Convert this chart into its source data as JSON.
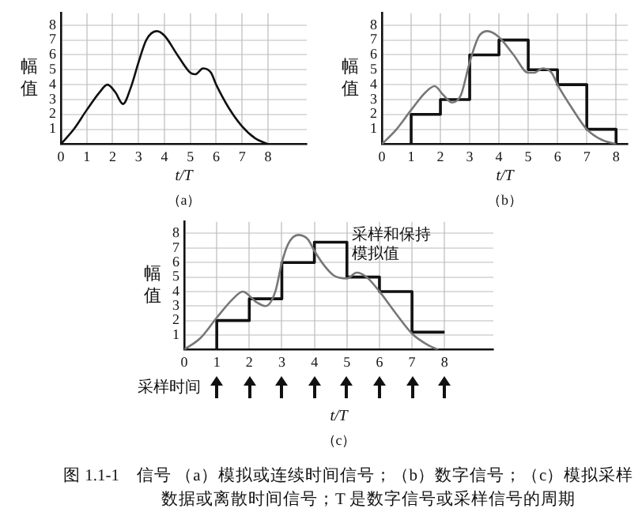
{
  "chart_data": [
    {
      "type": "line",
      "subtitle": "（a）",
      "xlabel": "t/T",
      "ylabel": "幅值",
      "xlim": [
        0,
        9.5
      ],
      "ylim": [
        0,
        8.8
      ],
      "xticks": [
        0,
        1,
        2,
        3,
        4,
        5,
        6,
        7,
        8
      ],
      "yticks": [
        1,
        2,
        3,
        4,
        5,
        6,
        7,
        8
      ],
      "grid": true,
      "legend": false,
      "series": [
        {
          "color": "#111111",
          "x": [
            0,
            0.5,
            1,
            1.5,
            1.8,
            2.1,
            2.4,
            2.7,
            3,
            3.3,
            3.7,
            4,
            4.5,
            5,
            5.2,
            5.5,
            5.8,
            6,
            6.5,
            7,
            7.5,
            8
          ],
          "values": [
            0,
            1,
            2.3,
            3.5,
            4,
            3.5,
            2.7,
            3.8,
            5.5,
            7,
            7.6,
            7.3,
            6,
            4.8,
            4.7,
            5.1,
            4.8,
            4,
            2.4,
            1.2,
            0.4,
            0
          ]
        }
      ]
    },
    {
      "type": "line",
      "subtitle": "（b）",
      "xlabel": "t/T",
      "ylabel": "幅值",
      "xlim": [
        0,
        8.4
      ],
      "ylim": [
        0,
        8.8
      ],
      "xticks": [
        0,
        1,
        2,
        3,
        4,
        5,
        6,
        7,
        8
      ],
      "yticks": [
        1,
        2,
        3,
        4,
        5,
        6,
        7,
        8
      ],
      "grid": true,
      "legend": false,
      "series": [
        {
          "color": "#777777",
          "x": [
            0,
            0.5,
            1,
            1.5,
            1.8,
            2.1,
            2.4,
            2.7,
            3,
            3.3,
            3.6,
            4,
            4.5,
            5,
            5.2,
            5.5,
            5.8,
            6,
            6.5,
            7,
            7.5,
            8
          ],
          "values": [
            0,
            1,
            2.3,
            3.5,
            3.9,
            3.3,
            2.8,
            3.3,
            5.5,
            7.2,
            7.6,
            7.2,
            6,
            4.8,
            4.8,
            5.1,
            4.8,
            4,
            2.4,
            1,
            0.3,
            0
          ]
        },
        {
          "type": "step",
          "color": "#111111",
          "x": [
            1,
            1,
            2,
            3,
            4,
            5,
            6,
            7,
            8
          ],
          "values": [
            0,
            2,
            3,
            6,
            7,
            5,
            4,
            1,
            0
          ]
        }
      ]
    },
    {
      "type": "line",
      "subtitle": "（c）",
      "xlabel": "t/T",
      "ylabel": "幅值",
      "xlim": [
        0,
        9.5
      ],
      "ylim": [
        0,
        8.8
      ],
      "xticks": [
        0,
        1,
        2,
        3,
        4,
        5,
        6,
        7,
        8
      ],
      "yticks": [
        1,
        2,
        3,
        4,
        5,
        6,
        7,
        8
      ],
      "grid": true,
      "legend": false,
      "annotations": [
        "采样和保持模拟值",
        "采样时间",
        "图 1.1-1　信号 （a）模拟或连续时间信号；（b）数字信号；（c）模拟采样数据或离散时间信号；T 是数字信号或采样信号的周期"
      ],
      "series": [
        {
          "color": "#777777",
          "x": [
            0,
            0.5,
            1,
            1.5,
            1.8,
            2.2,
            2.5,
            2.8,
            3,
            3.2,
            3.5,
            3.8,
            4,
            4.3,
            4.6,
            5,
            5.3,
            5.6,
            6,
            6.5,
            7,
            7.5,
            7.8
          ],
          "values": [
            0,
            0.8,
            2.2,
            3.5,
            4,
            3.3,
            3,
            4,
            6,
            7.3,
            7.9,
            7.6,
            6.8,
            5.8,
            5.1,
            4.9,
            5.3,
            5,
            4,
            2.5,
            1.1,
            0.3,
            0
          ]
        },
        {
          "type": "step",
          "color": "#111111",
          "x": [
            1,
            1,
            2,
            3,
            4,
            5,
            6,
            7,
            8
          ],
          "values": [
            0,
            2,
            3.5,
            6,
            7.4,
            5,
            4,
            1.2,
            1.2
          ]
        }
      ]
    }
  ]
}
